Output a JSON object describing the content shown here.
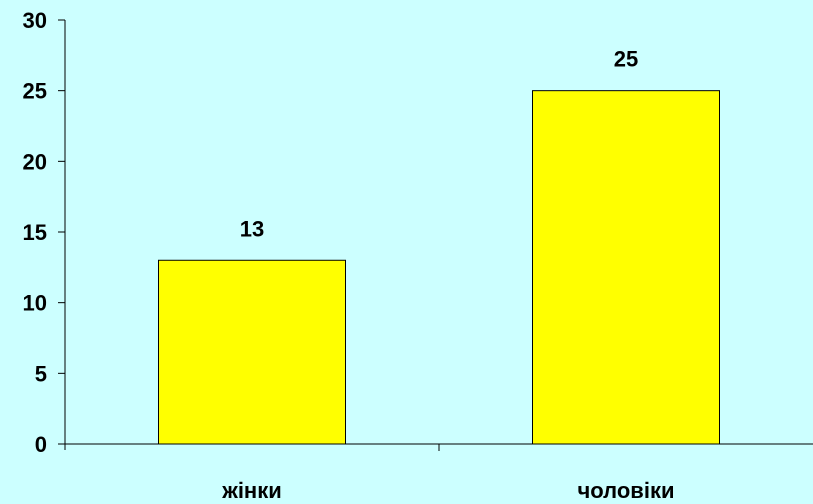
{
  "chart_data": {
    "type": "bar",
    "categories": [
      "жінки",
      "чоловіки"
    ],
    "values": [
      13,
      25
    ],
    "data_labels": [
      "13",
      "25"
    ],
    "title": "",
    "xlabel": "",
    "ylabel": "",
    "ylim": [
      0,
      30
    ],
    "yticks": [
      0,
      5,
      10,
      15,
      20,
      25,
      30
    ],
    "ytick_labels": [
      "0",
      "5",
      "10",
      "15",
      "20",
      "25",
      "30"
    ],
    "grid": false,
    "legend": "none",
    "colors": {
      "background": "#ccffff",
      "bar_fill": "#ffff00",
      "bar_stroke": "#000000",
      "axis": "#000000"
    }
  }
}
